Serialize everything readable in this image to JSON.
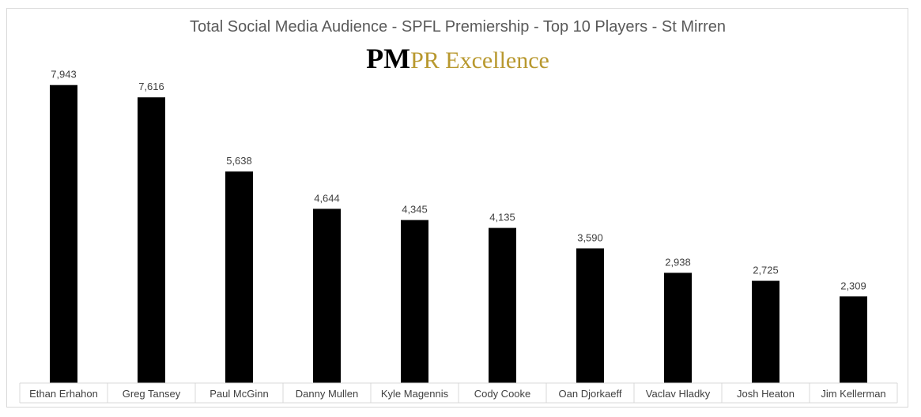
{
  "chart_data": {
    "type": "bar",
    "title": "Total Social Media Audience - SPFL Premiership - Top 10 Players - St Mirren",
    "categories": [
      "Ethan Erhahon",
      "Greg Tansey",
      "Paul McGinn",
      "Danny Mullen",
      "Kyle Magennis",
      "Cody Cooke",
      "Oan Djorkaeff",
      "Vaclav Hladky",
      "Josh Heaton",
      "Jim Kellerman"
    ],
    "values": [
      7943,
      7616,
      5638,
      4644,
      4345,
      4135,
      3590,
      2938,
      2725,
      2309
    ],
    "data_labels": [
      "7,943",
      "7,616",
      "5,638",
      "4,644",
      "4,345",
      "4,135",
      "3,590",
      "2,938",
      "2,725",
      "2,309"
    ],
    "xlabel": "",
    "ylabel": "",
    "ylim": [
      0,
      8000
    ],
    "grid": false,
    "legend": "none",
    "bar_color": "#000000"
  },
  "logo": {
    "part1": "PM",
    "part2": "PR Excellence",
    "color1": "#000000",
    "color2": "#b8982e"
  }
}
